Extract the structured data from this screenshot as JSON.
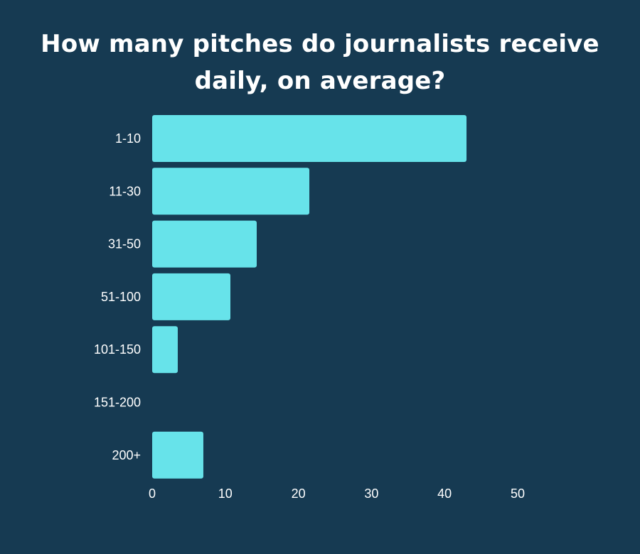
{
  "chart_data": {
    "type": "bar",
    "orientation": "horizontal",
    "title": "How many pitches do journalists receive daily, on average?",
    "categories": [
      "1-10",
      "11-30",
      "31-50",
      "51-100",
      "101-150",
      "151-200",
      "200+"
    ],
    "values": [
      43,
      21.5,
      14.3,
      10.7,
      3.5,
      0,
      7
    ],
    "xlim": [
      0,
      50
    ],
    "xticks": [
      0,
      10,
      20,
      30,
      40,
      50
    ],
    "grid": false,
    "legend": "none"
  },
  "colors": {
    "background": "#163a52",
    "bar": "#67e3ea",
    "text": "#ffffff"
  }
}
